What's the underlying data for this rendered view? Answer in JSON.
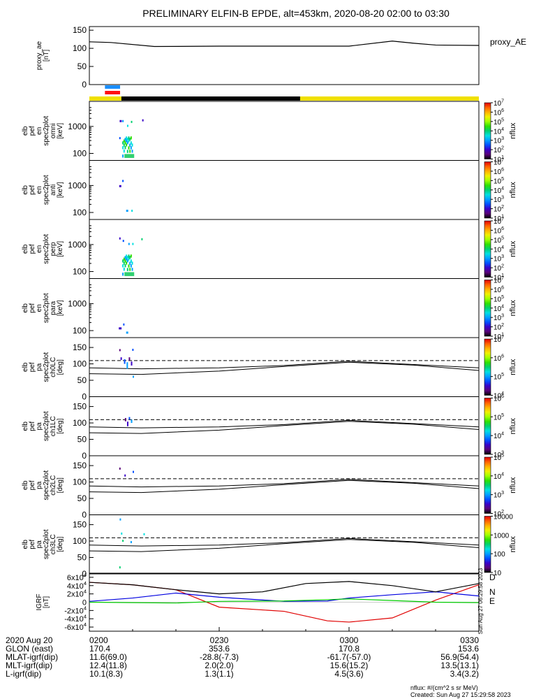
{
  "title": "PRELIMINARY ELFIN-B EPDE, alt=453km, 2020-08-20 02:00 to 03:30",
  "chart_data": [
    {
      "type": "line",
      "panel": "proxy_ae",
      "ylabel": [
        "proxy_ae",
        "[nT]"
      ],
      "right_label": "proxy_AE",
      "yticks": [
        "0",
        "50",
        "100",
        "150"
      ],
      "ylim": [
        0,
        160
      ],
      "x_minutes": [
        0,
        5,
        15,
        30,
        45,
        60,
        70,
        75,
        80,
        90
      ],
      "y": [
        118,
        116,
        105,
        106,
        106,
        106,
        120,
        114,
        109,
        108
      ]
    },
    {
      "type": "bar",
      "panel": "science_zone_bars",
      "segments": [
        {
          "start": 0,
          "end": 7.4,
          "color": "#f0e000"
        },
        {
          "start": 7.4,
          "end": 48.7,
          "color": "#000000"
        },
        {
          "start": 48.7,
          "end": 90,
          "color": "#f0e000"
        }
      ],
      "markers": [
        {
          "start": 3.6,
          "end": 7.1,
          "color": "#1a8fff"
        },
        {
          "start": 3.6,
          "end": 7.1,
          "color": "#ff1010"
        }
      ]
    },
    {
      "type": "heatmap",
      "panel": "omni",
      "ylabel": [
        "elb",
        "pef",
        "en",
        "spec2plot",
        "omni",
        "[keV]"
      ],
      "yticks": [
        "100",
        "1000"
      ],
      "ylog": true,
      "colorbar": {
        "label": "nflux",
        "ticks": [
          "10^1",
          "10^2",
          "10^3",
          "10^4",
          "10^5",
          "10^6",
          "10^7"
        ]
      }
    },
    {
      "type": "heatmap",
      "panel": "anti",
      "ylabel": [
        "elb",
        "pef",
        "en",
        "spec2plot",
        "anti",
        "[keV]"
      ],
      "yticks": [
        "100",
        "1000"
      ],
      "ylog": true,
      "colorbar": {
        "label": "nflux",
        "ticks": [
          "10^1",
          "10^2",
          "10^3",
          "10^4",
          "10^5",
          "10^6",
          "10^7"
        ]
      }
    },
    {
      "type": "heatmap",
      "panel": "perp",
      "ylabel": [
        "elb",
        "pef",
        "en",
        "spec2plot",
        "perp",
        "[keV]"
      ],
      "yticks": [
        "100",
        "1000"
      ],
      "ylog": true,
      "colorbar": {
        "label": "nflux",
        "ticks": [
          "10^1",
          "10^2",
          "10^3",
          "10^4",
          "10^5",
          "10^6",
          "10^7"
        ]
      }
    },
    {
      "type": "heatmap",
      "panel": "para",
      "ylabel": [
        "elb",
        "pef",
        "en",
        "spec2plot",
        "para",
        "[keV]"
      ],
      "yticks": [
        "100",
        "1000"
      ],
      "ylog": true,
      "colorbar": {
        "label": "nflux",
        "ticks": [
          "10^1",
          "10^2",
          "10^3",
          "10^4",
          "10^5",
          "10^6",
          "10^7"
        ]
      }
    },
    {
      "type": "heatmap",
      "panel": "ch0LC",
      "ylabel": [
        "elb",
        "pef",
        "pa",
        "spec2plot",
        "ch0LC",
        "[deg]"
      ],
      "yticks": [
        "0",
        "50",
        "100",
        "150"
      ],
      "ylim": [
        0,
        180
      ],
      "colorbar": {
        "label": "nflux",
        "ticks": [
          "10^4",
          "10^5",
          "10^6",
          "10^7"
        ]
      }
    },
    {
      "type": "heatmap",
      "panel": "ch1LC",
      "ylabel": [
        "elb",
        "pef",
        "pa",
        "spec2plot",
        "ch1LC",
        "[deg]"
      ],
      "yticks": [
        "0",
        "50",
        "100",
        "150"
      ],
      "ylim": [
        0,
        180
      ],
      "colorbar": {
        "label": "nflux",
        "ticks": [
          "10^3",
          "10^4",
          "10^5",
          "10^6"
        ]
      }
    },
    {
      "type": "heatmap",
      "panel": "ch2LC",
      "ylabel": [
        "elb",
        "pef",
        "pa",
        "spec2plot",
        "ch2LC",
        "[deg]"
      ],
      "yticks": [
        "0",
        "50",
        "100",
        "150"
      ],
      "ylim": [
        0,
        180
      ],
      "colorbar": {
        "label": "nflux",
        "ticks": [
          "10^2",
          "10^3",
          "10^4",
          "10^5"
        ]
      }
    },
    {
      "type": "heatmap",
      "panel": "ch3LC",
      "ylabel": [
        "elb",
        "pef",
        "pa",
        "spec2plot",
        "ch3LC",
        "[deg]"
      ],
      "yticks": [
        "0",
        "50",
        "100",
        "150"
      ],
      "ylim": [
        0,
        180
      ],
      "colorbar": {
        "label": "nflux",
        "ticks": [
          "10",
          "100",
          "1000",
          "10000"
        ]
      }
    },
    {
      "type": "line",
      "panel": "igrf",
      "ylabel": [
        "IGRF",
        "[nT]"
      ],
      "yticks": [
        "-6x10^4",
        "-4x10^4",
        "-2x10^4",
        "0",
        "2x10^4",
        "4x10^4",
        "6x10^4"
      ],
      "ylim": [
        -70000,
        70000
      ],
      "series": [
        {
          "name": "D",
          "color": "#e00000",
          "x": [
            0,
            10,
            20,
            30,
            45,
            55,
            60,
            70,
            80,
            90
          ],
          "y": [
            48000,
            42000,
            30000,
            -12000,
            -22000,
            -45000,
            -48000,
            -38000,
            5000,
            42000
          ]
        },
        {
          "name": "N",
          "color": "#0000e0",
          "x": [
            0,
            10,
            20,
            30,
            45,
            55,
            60,
            70,
            80,
            90
          ],
          "y": [
            2000,
            10000,
            22000,
            12000,
            2000,
            3000,
            10000,
            18000,
            25000,
            15000
          ]
        },
        {
          "name": "E",
          "color": "#00cc00",
          "x": [
            0,
            10,
            20,
            30,
            45,
            55,
            60,
            70,
            80,
            90
          ],
          "y": [
            0,
            -1000,
            -2000,
            2000,
            3000,
            6000,
            8000,
            4000,
            0,
            -1000
          ]
        },
        {
          "color": "#000000",
          "x": [
            0,
            10,
            20,
            30,
            40,
            50,
            60,
            70,
            80,
            90
          ],
          "y": [
            48000,
            42000,
            30000,
            20000,
            25000,
            45000,
            50000,
            40000,
            25000,
            45000
          ]
        }
      ]
    }
  ],
  "xaxis": {
    "minutes": [
      0,
      30,
      60,
      90
    ],
    "rows": [
      {
        "label": "2020 Aug 20",
        "values": [
          "0200",
          "0230",
          "0300",
          "0330"
        ]
      },
      {
        "label": "GLON (east)",
        "values": [
          "170.4",
          "353.6",
          "170.8",
          "153.6"
        ]
      },
      {
        "label": "MLAT-igrf(dip)",
        "values": [
          "11.6(69.0)",
          "-28.8(-7.3)",
          "-61.7(-57.0)",
          "56.9(54.4)"
        ]
      },
      {
        "label": "MLT-igrf(dip)",
        "values": [
          "12.4(11.8)",
          "2.0(2.0)",
          "15.6(15.2)",
          "13.5(13.1)"
        ]
      },
      {
        "label": "L-igrf(dip)",
        "values": [
          "10.1(8.3)",
          "1.3(1.1)",
          "4.5(3.6)",
          "3.4(3.2)"
        ]
      }
    ]
  },
  "footer": {
    "units": "nflux: #/(cm^2 s sr MeV)",
    "created": "Created: Sun Aug 27 15:29:58 2023",
    "stamp": "Sun Aug 27 06:29:58 2023"
  }
}
